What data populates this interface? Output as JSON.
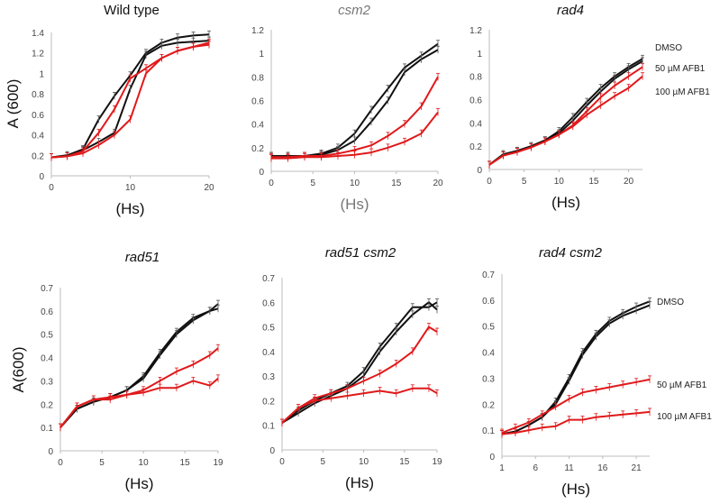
{
  "colors": {
    "dmso": "#111111",
    "afb1": "#e0191b",
    "axis": "#bdbdbd",
    "tick_text": "#444444"
  },
  "chart_data": [
    {
      "type": "line",
      "title": "Wild type",
      "title_italic": false,
      "ylabel": "A (600)",
      "xlabel": "(Hs)",
      "xlim": [
        0,
        20
      ],
      "ylim": [
        0,
        1.4
      ],
      "xticks": [
        0,
        10,
        20
      ],
      "yticks": [
        0,
        0.2,
        0.4,
        0.6,
        0.8,
        1,
        1.2,
        1.4
      ],
      "x": [
        0,
        2,
        4,
        6,
        8,
        10,
        12,
        14,
        16,
        18,
        20
      ],
      "series": [
        {
          "color": "dmso",
          "values": [
            0.18,
            0.2,
            0.26,
            0.55,
            0.78,
            0.98,
            1.2,
            1.3,
            1.35,
            1.37,
            1.38
          ]
        },
        {
          "color": "dmso",
          "values": [
            0.18,
            0.2,
            0.25,
            0.33,
            0.42,
            0.85,
            1.18,
            1.27,
            1.3,
            1.31,
            1.32
          ]
        },
        {
          "color": "afb1",
          "values": [
            0.18,
            0.19,
            0.24,
            0.42,
            0.65,
            0.95,
            1.05,
            1.15,
            1.22,
            1.26,
            1.28
          ]
        },
        {
          "color": "afb1",
          "values": [
            0.18,
            0.19,
            0.22,
            0.3,
            0.4,
            0.55,
            1.0,
            1.15,
            1.22,
            1.26,
            1.3
          ]
        }
      ]
    },
    {
      "type": "line",
      "title": "csm2",
      "title_italic": true,
      "title_gray": true,
      "xlabel": "(Hs)",
      "xlim": [
        0,
        20
      ],
      "ylim": [
        0,
        1.2
      ],
      "xticks": [
        0,
        5,
        10,
        15,
        20
      ],
      "yticks": [
        0,
        0.2,
        0.4,
        0.6,
        0.8,
        1,
        1.2
      ],
      "x": [
        0,
        2,
        4,
        6,
        8,
        10,
        12,
        14,
        16,
        18,
        20
      ],
      "series": [
        {
          "color": "dmso",
          "values": [
            0.13,
            0.13,
            0.13,
            0.15,
            0.2,
            0.32,
            0.52,
            0.7,
            0.88,
            0.98,
            1.08
          ]
        },
        {
          "color": "dmso",
          "values": [
            0.13,
            0.13,
            0.13,
            0.14,
            0.18,
            0.26,
            0.42,
            0.6,
            0.84,
            0.95,
            1.03
          ]
        },
        {
          "color": "afb1",
          "values": [
            0.12,
            0.12,
            0.13,
            0.13,
            0.15,
            0.18,
            0.22,
            0.3,
            0.4,
            0.55,
            0.8
          ]
        },
        {
          "color": "afb1",
          "values": [
            0.11,
            0.11,
            0.12,
            0.12,
            0.13,
            0.14,
            0.16,
            0.2,
            0.25,
            0.32,
            0.5
          ]
        }
      ]
    },
    {
      "type": "line",
      "title": "rad4",
      "title_italic": true,
      "xlabel": "(Hs)",
      "xlim": [
        0,
        22
      ],
      "ylim": [
        0,
        1.2
      ],
      "xticks": [
        0,
        5,
        10,
        15,
        20
      ],
      "yticks": [
        0,
        0.2,
        0.4,
        0.6,
        0.8,
        1,
        1.2
      ],
      "x": [
        0,
        2,
        4,
        6,
        8,
        10,
        12,
        14,
        16,
        18,
        20,
        22
      ],
      "legend": [
        "DMSO",
        "50 µM AFB1",
        "100 µM AFB1"
      ],
      "series": [
        {
          "color": "dmso",
          "values": [
            0.04,
            0.13,
            0.16,
            0.2,
            0.25,
            0.33,
            0.45,
            0.58,
            0.7,
            0.8,
            0.88,
            0.95
          ]
        },
        {
          "color": "dmso",
          "values": [
            0.04,
            0.13,
            0.16,
            0.2,
            0.25,
            0.31,
            0.42,
            0.55,
            0.67,
            0.78,
            0.86,
            0.93
          ]
        },
        {
          "color": "afb1",
          "values": [
            0.04,
            0.12,
            0.15,
            0.19,
            0.24,
            0.3,
            0.38,
            0.5,
            0.62,
            0.72,
            0.8,
            0.88
          ]
        },
        {
          "color": "afb1",
          "values": [
            0.04,
            0.12,
            0.15,
            0.19,
            0.24,
            0.3,
            0.37,
            0.47,
            0.55,
            0.63,
            0.7,
            0.8
          ]
        }
      ]
    },
    {
      "type": "line",
      "title": "rad51",
      "title_italic": true,
      "ylabel": "A(600)",
      "xlabel": "(Hs)",
      "xlim": [
        0,
        19
      ],
      "ylim": [
        0,
        0.7
      ],
      "xticks": [
        0,
        5,
        10,
        15,
        19
      ],
      "yticks": [
        0,
        0.1,
        0.2,
        0.3,
        0.4,
        0.5,
        0.6,
        0.7
      ],
      "x": [
        0,
        2,
        4,
        6,
        8,
        10,
        12,
        14,
        16,
        18,
        19
      ],
      "series": [
        {
          "color": "dmso",
          "values": [
            0.1,
            0.18,
            0.21,
            0.23,
            0.26,
            0.32,
            0.42,
            0.51,
            0.57,
            0.6,
            0.63
          ]
        },
        {
          "color": "dmso",
          "values": [
            0.1,
            0.18,
            0.21,
            0.23,
            0.26,
            0.31,
            0.41,
            0.5,
            0.56,
            0.6,
            0.61
          ]
        },
        {
          "color": "afb1",
          "values": [
            0.1,
            0.19,
            0.22,
            0.23,
            0.24,
            0.26,
            0.3,
            0.34,
            0.37,
            0.41,
            0.44
          ]
        },
        {
          "color": "afb1",
          "values": [
            0.1,
            0.19,
            0.22,
            0.22,
            0.24,
            0.25,
            0.27,
            0.27,
            0.3,
            0.28,
            0.31
          ]
        }
      ]
    },
    {
      "type": "line",
      "title": "rad51 csm2",
      "title_italic": true,
      "xlabel": "(Hs)",
      "xlim": [
        0,
        19
      ],
      "ylim": [
        0,
        0.7
      ],
      "xticks": [
        0,
        5,
        10,
        15,
        19
      ],
      "yticks": [
        0,
        0.1,
        0.2,
        0.3,
        0.4,
        0.5,
        0.6,
        0.7
      ],
      "x": [
        0,
        2,
        4,
        6,
        8,
        10,
        12,
        14,
        16,
        18,
        19
      ],
      "series": [
        {
          "color": "dmso",
          "values": [
            0.11,
            0.16,
            0.2,
            0.23,
            0.26,
            0.32,
            0.42,
            0.5,
            0.58,
            0.58,
            0.6
          ]
        },
        {
          "color": "dmso",
          "values": [
            0.11,
            0.15,
            0.19,
            0.22,
            0.25,
            0.3,
            0.4,
            0.48,
            0.55,
            0.6,
            0.57
          ]
        },
        {
          "color": "afb1",
          "values": [
            0.11,
            0.17,
            0.21,
            0.23,
            0.25,
            0.28,
            0.31,
            0.35,
            0.4,
            0.5,
            0.48
          ]
        },
        {
          "color": "afb1",
          "values": [
            0.11,
            0.17,
            0.2,
            0.21,
            0.22,
            0.23,
            0.24,
            0.23,
            0.25,
            0.25,
            0.23
          ]
        }
      ]
    },
    {
      "type": "line",
      "title": "rad4 csm2",
      "title_italic": true,
      "xlabel": "(Hs)",
      "xlim": [
        1,
        23
      ],
      "ylim": [
        0,
        0.7
      ],
      "xticks": [
        1,
        6,
        11,
        16,
        21
      ],
      "yticks": [
        0,
        0.1,
        0.2,
        0.3,
        0.4,
        0.5,
        0.6,
        0.7
      ],
      "x": [
        1,
        3,
        5,
        7,
        9,
        11,
        13,
        15,
        17,
        19,
        21,
        23
      ],
      "legend": [
        "DMSO",
        "50 µM AFB1",
        "100 µM AFB1"
      ],
      "series": [
        {
          "color": "dmso",
          "values": [
            0.085,
            0.095,
            0.12,
            0.15,
            0.21,
            0.3,
            0.4,
            0.47,
            0.52,
            0.55,
            0.575,
            0.595
          ]
        },
        {
          "color": "dmso",
          "values": [
            0.085,
            0.095,
            0.12,
            0.15,
            0.2,
            0.29,
            0.39,
            0.46,
            0.51,
            0.54,
            0.56,
            0.58
          ]
        },
        {
          "color": "afb1",
          "values": [
            0.09,
            0.11,
            0.13,
            0.16,
            0.19,
            0.22,
            0.245,
            0.255,
            0.265,
            0.275,
            0.285,
            0.295
          ]
        },
        {
          "color": "afb1",
          "values": [
            0.085,
            0.09,
            0.1,
            0.11,
            0.115,
            0.14,
            0.14,
            0.15,
            0.155,
            0.16,
            0.165,
            0.17
          ]
        }
      ]
    }
  ]
}
